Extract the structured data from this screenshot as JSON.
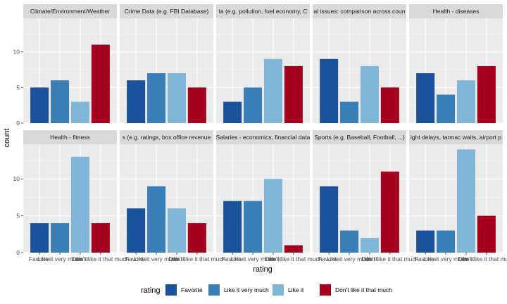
{
  "chart_data": {
    "type": "bar",
    "xlabel": "rating",
    "ylabel": "count",
    "ylim": [
      0,
      14.7
    ],
    "yticks": [
      0,
      5,
      10
    ],
    "grid": true,
    "legend_position": "bottom",
    "legend_title": "rating",
    "categories": [
      "Favorite",
      "Like it very much",
      "Like it",
      "Don't like it that much"
    ],
    "colors": [
      "#1c519b",
      "#387fba",
      "#80b6d8",
      "#a3001f"
    ],
    "panels": [
      {
        "title": "Climate/Environment/Weather",
        "values": [
          5,
          6,
          3,
          11
        ]
      },
      {
        "title": "Crime Data (e.g. FBI Database)",
        "values": [
          6,
          7,
          7,
          5
        ]
      },
      {
        "title": "ta (e.g. pollution, fuel economy, C",
        "values": [
          3,
          5,
          9,
          8
        ]
      },
      {
        "title": "al issues: comparison across coun",
        "values": [
          9,
          3,
          8,
          5
        ]
      },
      {
        "title": "Health - diseases",
        "values": [
          7,
          4,
          6,
          8
        ]
      },
      {
        "title": "Health - fitness",
        "values": [
          4,
          4,
          13,
          4
        ]
      },
      {
        "title": "s (e.g. ratings, box office revenue",
        "values": [
          6,
          9,
          6,
          4
        ]
      },
      {
        "title": "Salaries - economics, financial data",
        "values": [
          7,
          7,
          10,
          1
        ]
      },
      {
        "title": "Sports (e.g. Baseball, Football, ...)",
        "values": [
          9,
          3,
          2,
          11
        ]
      },
      {
        "title": "ight delays, tarmac waits, airport p",
        "values": [
          3,
          3,
          14,
          5
        ]
      }
    ]
  }
}
